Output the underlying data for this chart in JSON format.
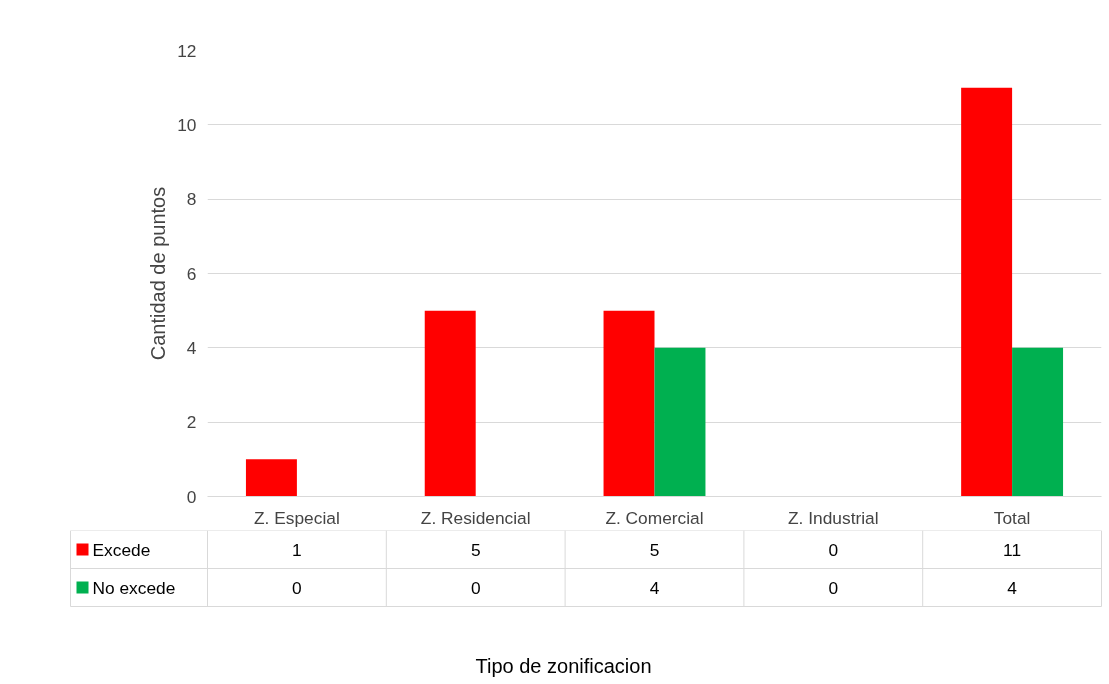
{
  "chart_data": {
    "type": "bar",
    "annotations": [
      "Tipo de zonificacion"
    ],
    "ylabel": "Cantidad de puntos",
    "categories": [
      "Z. Especial",
      "Z. Residencial",
      "Z. Comercial",
      "Z. Industrial",
      "Total"
    ],
    "series": [
      {
        "name": "Excede",
        "color": "#ff0000",
        "values": [
          1,
          5,
          5,
          0,
          11
        ]
      },
      {
        "name": "No excede",
        "color": "#00b050",
        "values": [
          0,
          0,
          4,
          0,
          4
        ]
      }
    ],
    "ylim": [
      0,
      12
    ],
    "yticks": [
      0,
      2,
      4,
      6,
      8,
      10,
      12
    ],
    "grid": "y",
    "legend": "bottom left",
    "data_labels": true
  }
}
